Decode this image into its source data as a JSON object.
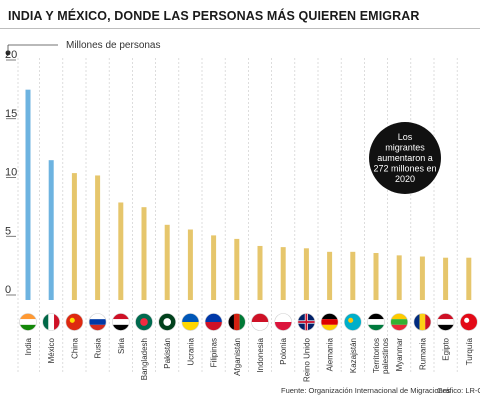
{
  "title": "INDIA Y MÉXICO, DONDE LAS PERSONAS MÁS QUIEREN EMIGRAR",
  "source": "Fuente: Organización Internacional de Migraciones",
  "credit": "Gráfico: LR-GR",
  "annotation": [
    "Los",
    "migrantes",
    "aumentaron a",
    "272 millones en",
    "2020"
  ],
  "colors": {
    "highlight": "#6db3e0",
    "default": "#e6c66c",
    "grid": "#cfcfcf",
    "note_bg": "#111111"
  },
  "chart_data": {
    "type": "bar",
    "ylabel": "Millones de personas",
    "ylim": [
      0,
      20
    ],
    "yticks": [
      0,
      5,
      10,
      15,
      20
    ],
    "categories": [
      "India",
      "México",
      "China",
      "Rusia",
      "Siria",
      "Bangladesh",
      "Pakistán",
      "Ucrania",
      "Filipinas",
      "Afganistán",
      "Indonesia",
      "Polonia",
      "Reino Unido",
      "Alemania",
      "Kazajstán",
      "Territorios palestinos",
      "Myanmar",
      "Rumania",
      "Egipto",
      "Turquía"
    ],
    "values": [
      17.9,
      11.9,
      10.8,
      10.6,
      8.3,
      7.9,
      6.4,
      6.0,
      5.5,
      5.2,
      4.6,
      4.5,
      4.4,
      4.1,
      4.1,
      4.0,
      3.8,
      3.7,
      3.6,
      3.6
    ],
    "highlighted": [
      "India",
      "México"
    ],
    "flags": [
      "india-flag-icon",
      "mexico-flag-icon",
      "china-flag-icon",
      "russia-flag-icon",
      "syria-flag-icon",
      "bangladesh-flag-icon",
      "pakistan-flag-icon",
      "ukraine-flag-icon",
      "philippines-flag-icon",
      "afghanistan-flag-icon",
      "indonesia-flag-icon",
      "poland-flag-icon",
      "uk-flag-icon",
      "germany-flag-icon",
      "kazakhstan-flag-icon",
      "palestine-flag-icon",
      "myanmar-flag-icon",
      "romania-flag-icon",
      "egypt-flag-icon",
      "turkey-flag-icon"
    ]
  }
}
